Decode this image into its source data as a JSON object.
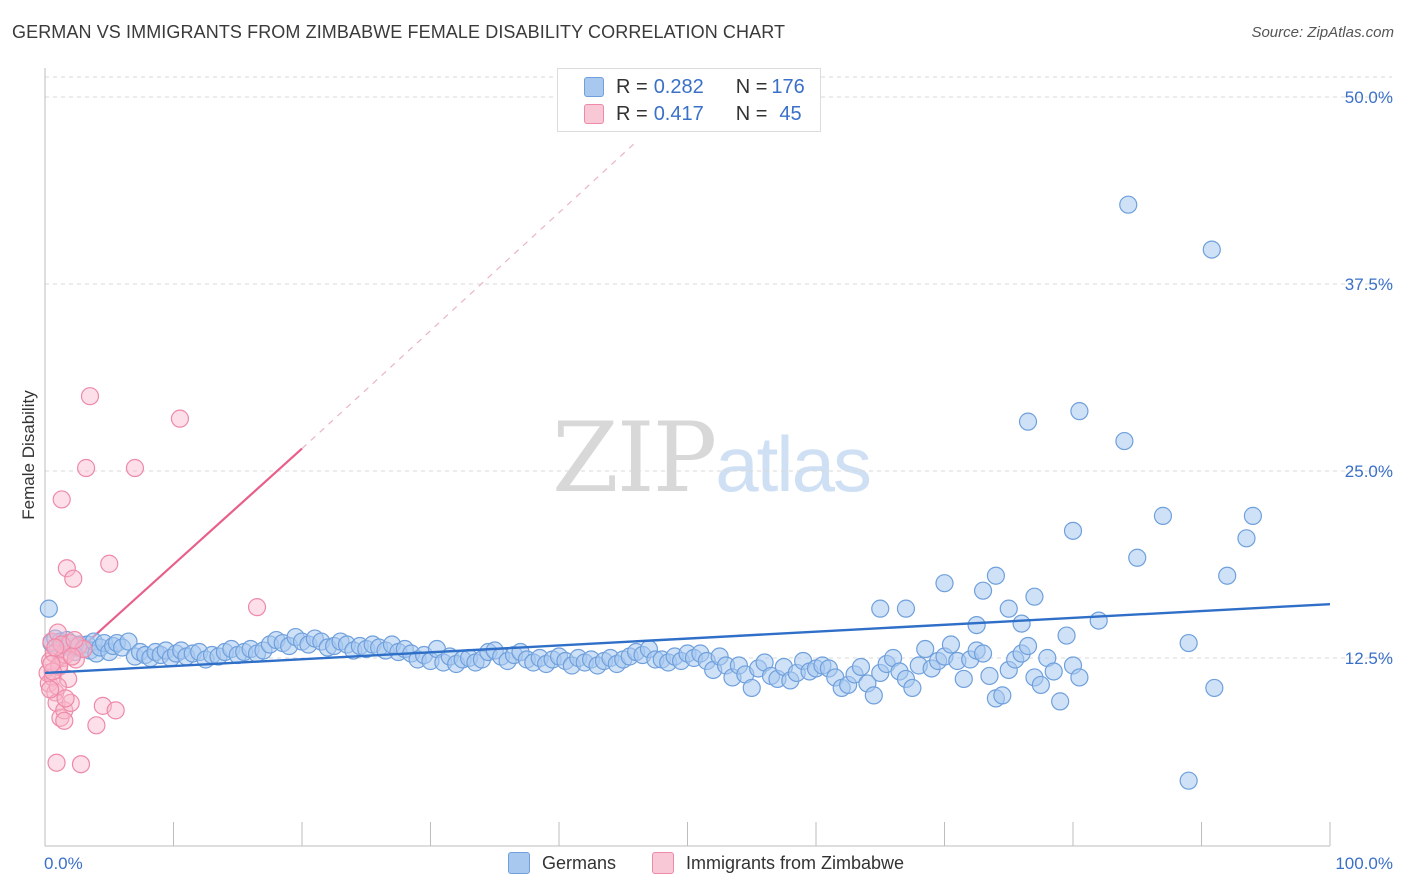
{
  "title": "GERMAN VS IMMIGRANTS FROM ZIMBABWE FEMALE DISABILITY CORRELATION CHART",
  "source": "Source: ZipAtlas.com",
  "watermark": {
    "part1": "ZIP",
    "part2": "atlas"
  },
  "legend": {
    "row1": {
      "r_label": "R = ",
      "r_value": "0.282",
      "n_label": "N = ",
      "n_value": "176"
    },
    "row2": {
      "r_label": "R = ",
      "r_value": "0.417",
      "n_label": "N = ",
      "n_value": "45"
    }
  },
  "colors": {
    "blue_fill": "#a8c8f0",
    "blue_stroke": "#6fa0dc",
    "blue_line": "#2f6fc8",
    "pink_fill": "#f8b8cc",
    "pink_stroke": "#ee8aa8",
    "pink_line": "#e8608a",
    "label_blue": "#3a70c8"
  },
  "chart_data": {
    "type": "scatter",
    "title": "GERMAN VS IMMIGRANTS FROM ZIMBABWE FEMALE DISABILITY CORRELATION CHART",
    "xlabel": "",
    "ylabel": "Female Disability",
    "xlim": [
      0,
      100
    ],
    "ylim": [
      0,
      50
    ],
    "x_tick_labels": [
      "0.0%",
      "100.0%"
    ],
    "y_tick_labels": [
      "12.5%",
      "25.0%",
      "37.5%",
      "50.0%"
    ],
    "y_ticks": [
      12.5,
      25.0,
      37.5,
      50.0
    ],
    "grid": true,
    "legend_position": "bottom",
    "series": [
      {
        "name": "Germans",
        "color": "#a8c8f0",
        "trend": {
          "x": [
            0,
            100
          ],
          "y": [
            11.5,
            16.1
          ]
        },
        "points": [
          [
            0.3,
            15.8
          ],
          [
            0.5,
            13.5
          ],
          [
            0.8,
            13.8
          ],
          [
            1.0,
            13.0
          ],
          [
            1.2,
            13.6
          ],
          [
            1.5,
            13.3
          ],
          [
            1.7,
            13.7
          ],
          [
            2.0,
            13.5
          ],
          [
            2.3,
            12.9
          ],
          [
            2.5,
            13.2
          ],
          [
            2.7,
            13.4
          ],
          [
            3.0,
            13.1
          ],
          [
            3.3,
            13.4
          ],
          [
            3.5,
            13.0
          ],
          [
            3.8,
            13.6
          ],
          [
            4.0,
            12.8
          ],
          [
            4.3,
            13.2
          ],
          [
            4.6,
            13.5
          ],
          [
            5.0,
            12.9
          ],
          [
            5.3,
            13.3
          ],
          [
            5.6,
            13.5
          ],
          [
            6.0,
            13.2
          ],
          [
            6.5,
            13.6
          ],
          [
            7.0,
            12.6
          ],
          [
            7.4,
            12.9
          ],
          [
            7.8,
            12.7
          ],
          [
            8.2,
            12.5
          ],
          [
            8.6,
            12.9
          ],
          [
            9.0,
            12.7
          ],
          [
            9.4,
            13.0
          ],
          [
            9.8,
            12.5
          ],
          [
            10.2,
            12.8
          ],
          [
            10.6,
            13.0
          ],
          [
            11.0,
            12.6
          ],
          [
            11.5,
            12.8
          ],
          [
            12.0,
            12.9
          ],
          [
            12.5,
            12.4
          ],
          [
            13.0,
            12.7
          ],
          [
            13.5,
            12.6
          ],
          [
            14.0,
            12.9
          ],
          [
            14.5,
            13.1
          ],
          [
            15.0,
            12.7
          ],
          [
            15.5,
            12.9
          ],
          [
            16.0,
            13.1
          ],
          [
            16.5,
            12.8
          ],
          [
            17.0,
            13.0
          ],
          [
            17.5,
            13.4
          ],
          [
            18.0,
            13.7
          ],
          [
            18.5,
            13.5
          ],
          [
            19.0,
            13.3
          ],
          [
            19.5,
            13.9
          ],
          [
            20.0,
            13.6
          ],
          [
            20.5,
            13.4
          ],
          [
            21.0,
            13.8
          ],
          [
            21.5,
            13.6
          ],
          [
            22.0,
            13.2
          ],
          [
            22.5,
            13.3
          ],
          [
            23.0,
            13.6
          ],
          [
            23.5,
            13.4
          ],
          [
            24.0,
            13.0
          ],
          [
            24.5,
            13.3
          ],
          [
            25.0,
            13.1
          ],
          [
            25.5,
            13.4
          ],
          [
            26.0,
            13.2
          ],
          [
            26.5,
            13.0
          ],
          [
            27.0,
            13.4
          ],
          [
            27.5,
            12.9
          ],
          [
            28.0,
            13.1
          ],
          [
            28.5,
            12.8
          ],
          [
            29.0,
            12.4
          ],
          [
            29.5,
            12.7
          ],
          [
            30.0,
            12.3
          ],
          [
            30.5,
            13.1
          ],
          [
            31.0,
            12.2
          ],
          [
            31.5,
            12.6
          ],
          [
            32.0,
            12.1
          ],
          [
            32.5,
            12.4
          ],
          [
            33.0,
            12.5
          ],
          [
            33.5,
            12.2
          ],
          [
            34.0,
            12.4
          ],
          [
            34.5,
            12.9
          ],
          [
            35.0,
            13.0
          ],
          [
            35.5,
            12.6
          ],
          [
            36.0,
            12.3
          ],
          [
            36.5,
            12.7
          ],
          [
            37.0,
            12.9
          ],
          [
            37.5,
            12.4
          ],
          [
            38.0,
            12.2
          ],
          [
            38.5,
            12.5
          ],
          [
            39.0,
            12.1
          ],
          [
            39.5,
            12.4
          ],
          [
            40.0,
            12.6
          ],
          [
            40.5,
            12.3
          ],
          [
            41.0,
            12.0
          ],
          [
            41.5,
            12.5
          ],
          [
            42.0,
            12.2
          ],
          [
            42.5,
            12.4
          ],
          [
            43.0,
            12.0
          ],
          [
            43.5,
            12.3
          ],
          [
            44.0,
            12.5
          ],
          [
            44.5,
            12.1
          ],
          [
            45.0,
            12.4
          ],
          [
            45.5,
            12.6
          ],
          [
            46.0,
            12.9
          ],
          [
            46.5,
            12.7
          ],
          [
            47.0,
            13.1
          ],
          [
            47.5,
            12.4
          ],
          [
            48.0,
            12.4
          ],
          [
            48.5,
            12.2
          ],
          [
            49.0,
            12.6
          ],
          [
            49.5,
            12.3
          ],
          [
            50.0,
            12.8
          ],
          [
            50.5,
            12.5
          ],
          [
            51.0,
            12.8
          ],
          [
            51.5,
            12.3
          ],
          [
            52.0,
            11.7
          ],
          [
            52.5,
            12.6
          ],
          [
            53.0,
            12.0
          ],
          [
            53.5,
            11.2
          ],
          [
            54.0,
            12.0
          ],
          [
            54.5,
            11.4
          ],
          [
            55.0,
            10.5
          ],
          [
            55.5,
            11.8
          ],
          [
            56.0,
            12.2
          ],
          [
            56.5,
            11.3
          ],
          [
            57.0,
            11.1
          ],
          [
            57.5,
            11.9
          ],
          [
            58.0,
            11.0
          ],
          [
            58.5,
            11.5
          ],
          [
            59.0,
            12.3
          ],
          [
            59.5,
            11.6
          ],
          [
            60.0,
            11.8
          ],
          [
            60.5,
            12.0
          ],
          [
            61.0,
            11.8
          ],
          [
            61.5,
            11.2
          ],
          [
            62.0,
            10.5
          ],
          [
            62.5,
            10.7
          ],
          [
            63.0,
            11.4
          ],
          [
            63.5,
            11.9
          ],
          [
            64.0,
            10.8
          ],
          [
            64.5,
            10.0
          ],
          [
            65.0,
            11.5
          ],
          [
            65.5,
            12.1
          ],
          [
            66.0,
            12.5
          ],
          [
            66.5,
            11.6
          ],
          [
            67.0,
            11.1
          ],
          [
            67.5,
            10.5
          ],
          [
            68.0,
            12.0
          ],
          [
            68.5,
            13.1
          ],
          [
            69.0,
            11.8
          ],
          [
            69.5,
            12.3
          ],
          [
            70.0,
            12.6
          ],
          [
            70.5,
            13.4
          ],
          [
            71.0,
            12.3
          ],
          [
            71.5,
            11.1
          ],
          [
            72.0,
            12.4
          ],
          [
            72.5,
            13.0
          ],
          [
            73.0,
            12.8
          ],
          [
            73.5,
            11.3
          ],
          [
            74.0,
            9.8
          ],
          [
            74.5,
            10.0
          ],
          [
            75.0,
            11.7
          ],
          [
            75.5,
            12.4
          ],
          [
            76.0,
            12.8
          ],
          [
            76.5,
            13.3
          ],
          [
            77.0,
            11.2
          ],
          [
            77.5,
            10.7
          ],
          [
            78.0,
            12.5
          ],
          [
            78.5,
            11.6
          ],
          [
            79.0,
            9.6
          ],
          [
            79.5,
            14.0
          ],
          [
            80.0,
            12.0
          ],
          [
            80.5,
            11.2
          ]
        ]
      },
      {
        "name": "Immigrants from Zimbabwe",
        "color": "#f8b8cc",
        "trend": {
          "x": [
            0,
            20
          ],
          "y": [
            11.0,
            26.5
          ],
          "extended_to": [
            46,
            47.0
          ]
        },
        "points": [
          [
            0.2,
            11.5
          ],
          [
            0.3,
            10.8
          ],
          [
            0.4,
            12.3
          ],
          [
            0.5,
            13.6
          ],
          [
            0.6,
            11.2
          ],
          [
            0.7,
            12.8
          ],
          [
            0.8,
            10.2
          ],
          [
            0.9,
            9.5
          ],
          [
            1.0,
            14.2
          ],
          [
            1.1,
            11.9
          ],
          [
            1.2,
            8.5
          ],
          [
            1.3,
            23.1
          ],
          [
            1.4,
            12.5
          ],
          [
            1.5,
            9.0
          ],
          [
            1.6,
            12.7
          ],
          [
            1.7,
            18.5
          ],
          [
            1.8,
            11.1
          ],
          [
            1.9,
            13.5
          ],
          [
            2.0,
            9.5
          ],
          [
            2.2,
            17.8
          ],
          [
            2.4,
            12.4
          ],
          [
            2.6,
            13.3
          ],
          [
            2.8,
            5.4
          ],
          [
            3.0,
            13.1
          ],
          [
            3.2,
            25.2
          ],
          [
            3.5,
            30.0
          ],
          [
            4.0,
            8.0
          ],
          [
            4.5,
            9.3
          ],
          [
            5.0,
            18.8
          ],
          [
            5.5,
            9.0
          ],
          [
            7.0,
            25.2
          ],
          [
            10.5,
            28.5
          ],
          [
            16.5,
            15.9
          ],
          [
            0.9,
            5.5
          ],
          [
            1.0,
            10.6
          ],
          [
            1.1,
            12.0
          ],
          [
            1.3,
            13.4
          ],
          [
            1.5,
            8.3
          ],
          [
            0.4,
            10.4
          ],
          [
            0.6,
            11.6
          ],
          [
            0.8,
            13.2
          ],
          [
            2.1,
            12.6
          ],
          [
            2.3,
            13.7
          ],
          [
            1.6,
            9.8
          ],
          [
            0.5,
            12.1
          ]
        ]
      }
    ]
  }
}
